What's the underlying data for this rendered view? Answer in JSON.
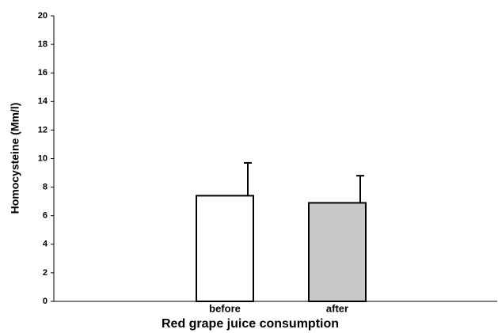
{
  "chart_data": {
    "type": "bar",
    "x_label": "Red grape juice consumption",
    "y_label": "Homocysteine (Mm/l)",
    "categories": [
      "before",
      "after"
    ],
    "values": [
      7.4,
      6.9
    ],
    "errors": [
      2.3,
      1.9
    ],
    "colors": [
      "#ffffff",
      "#c8c8c8"
    ],
    "ylim": [
      0,
      20
    ],
    "yticks": [
      0,
      2,
      4,
      6,
      8,
      10,
      12,
      14,
      16,
      18,
      20
    ],
    "grid": false
  }
}
